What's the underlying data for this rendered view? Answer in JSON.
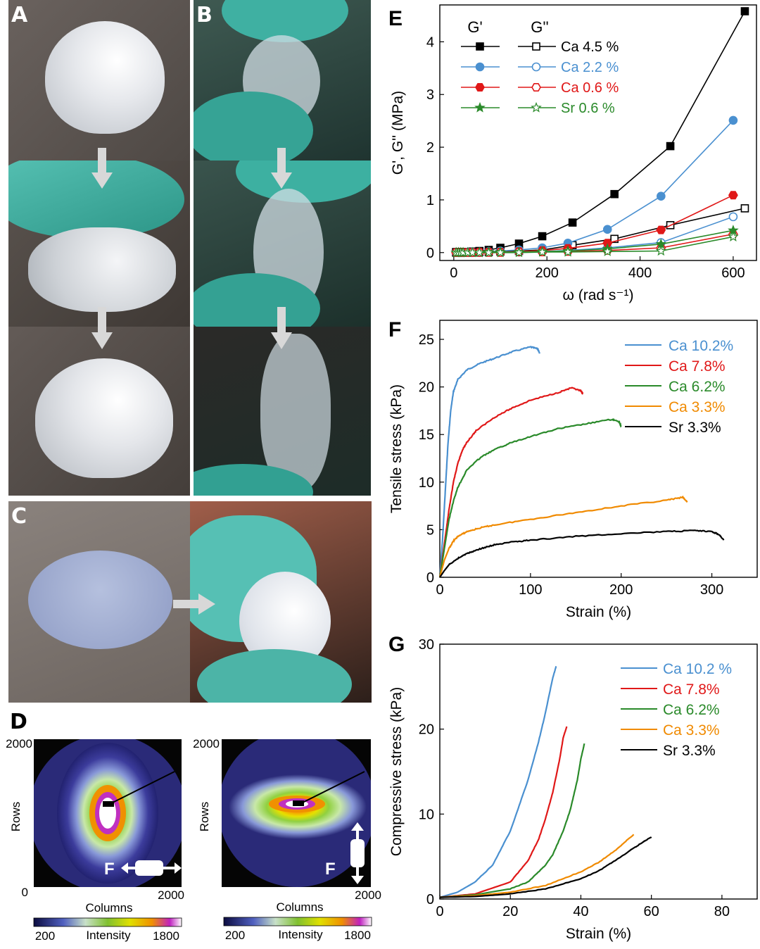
{
  "panels": {
    "a": "A",
    "b": "B",
    "c": "C",
    "d": "D",
    "e": "E",
    "f": "F",
    "g": "G"
  },
  "panel_d": {
    "left": {
      "rows_label": "Rows",
      "columns_label": "Columns",
      "y_max": "2000",
      "origin": "0",
      "x_max": "2000",
      "force_label": "F",
      "force_direction": "horizontal",
      "cbar_min": "200",
      "cbar_label": "Intensity",
      "cbar_max": "1800"
    },
    "right": {
      "rows_label": "Rows",
      "columns_label": "Columns",
      "y_max": "2000",
      "x_max": "2000",
      "force_label": "F",
      "force_direction": "vertical",
      "cbar_min": "200",
      "cbar_label": "Intensity",
      "cbar_max": "1800"
    }
  },
  "chart_data": [
    {
      "panel": "E",
      "type": "line",
      "xlabel": "ω (rad s⁻¹)",
      "ylabel": "G', G'' (MPa)",
      "xlim": [
        -30,
        650
      ],
      "ylim": [
        -0.15,
        4.7
      ],
      "xticks": [
        0,
        200,
        400,
        600
      ],
      "yticks": [
        0,
        1,
        2,
        3,
        4
      ],
      "legend_headers": [
        "G'",
        "G''"
      ],
      "series": [
        {
          "name": "Ca 4.5 %",
          "color": "#000000",
          "marker": "square",
          "x": [
            5,
            10,
            15,
            20,
            30,
            40,
            55,
            75,
            100,
            140,
            190,
            255,
            345,
            465,
            625
          ],
          "gp": [
            0.01,
            0.01,
            0.01,
            0.01,
            0.01,
            0.02,
            0.03,
            0.05,
            0.09,
            0.17,
            0.31,
            0.57,
            1.11,
            2.02,
            4.58
          ],
          "gpp": [
            0.0,
            0.0,
            0.0,
            0.0,
            0.0,
            0.01,
            0.01,
            0.01,
            0.02,
            0.03,
            0.05,
            0.14,
            0.26,
            0.52,
            0.84
          ]
        },
        {
          "name": "Ca 2.2 %",
          "color": "#4a90d0",
          "marker": "circle",
          "x": [
            5,
            10,
            15,
            20,
            30,
            40,
            55,
            75,
            100,
            140,
            190,
            245,
            330,
            445,
            600
          ],
          "gp": [
            0.0,
            0.0,
            0.0,
            0.0,
            0.01,
            0.01,
            0.01,
            0.02,
            0.03,
            0.05,
            0.09,
            0.18,
            0.44,
            1.07,
            2.51
          ],
          "gpp": [
            0.0,
            0.0,
            0.0,
            0.0,
            0.0,
            0.0,
            0.0,
            0.01,
            0.01,
            0.01,
            0.02,
            0.04,
            0.09,
            0.19,
            0.68
          ]
        },
        {
          "name": "Ca 0.6 %",
          "color": "#e01818",
          "marker": "hexagon",
          "x": [
            5,
            10,
            15,
            20,
            30,
            40,
            55,
            75,
            100,
            140,
            190,
            245,
            330,
            445,
            600
          ],
          "gp": [
            0.0,
            0.0,
            0.0,
            0.0,
            0.0,
            0.0,
            0.01,
            0.01,
            0.01,
            0.02,
            0.04,
            0.08,
            0.18,
            0.43,
            1.09
          ],
          "gpp": [
            0.0,
            0.0,
            0.0,
            0.0,
            0.0,
            0.0,
            0.0,
            0.0,
            0.0,
            0.01,
            0.01,
            0.02,
            0.04,
            0.09,
            0.35
          ]
        },
        {
          "name": "Sr 0.6 %",
          "color": "#2a8a2a",
          "marker": "star",
          "x": [
            5,
            10,
            15,
            20,
            30,
            40,
            55,
            75,
            100,
            140,
            190,
            245,
            330,
            445,
            600
          ],
          "gp": [
            0.0,
            0.0,
            0.0,
            0.0,
            0.0,
            0.0,
            0.0,
            0.01,
            0.01,
            0.01,
            0.02,
            0.03,
            0.07,
            0.16,
            0.42
          ],
          "gpp": [
            0.0,
            0.0,
            0.0,
            0.0,
            0.0,
            0.0,
            0.0,
            0.0,
            0.0,
            0.0,
            0.01,
            0.01,
            0.02,
            0.03,
            0.3
          ]
        }
      ]
    },
    {
      "panel": "F",
      "type": "line",
      "xlabel": "Strain (%)",
      "ylabel": "Tensile stress (kPa)",
      "xlim": [
        0,
        350
      ],
      "ylim": [
        0,
        27
      ],
      "xticks": [
        0,
        100,
        200,
        300
      ],
      "yticks": [
        0,
        5,
        10,
        15,
        20,
        25
      ],
      "series": [
        {
          "name": "Ca 10.2%",
          "color": "#4a90d0",
          "x": [
            0,
            3,
            6,
            9,
            12,
            15,
            20,
            30,
            45,
            60,
            80,
            100,
            108,
            110
          ],
          "y": [
            0,
            4,
            9,
            14,
            17.5,
            19.5,
            20.8,
            21.8,
            22.5,
            23.0,
            23.7,
            24.2,
            24.0,
            23.5
          ]
        },
        {
          "name": "Ca 7.8%",
          "color": "#e01818",
          "x": [
            0,
            5,
            10,
            15,
            20,
            25,
            30,
            40,
            60,
            80,
            100,
            130,
            145,
            155,
            158
          ],
          "y": [
            0,
            3.5,
            7,
            10,
            12,
            13.4,
            14.2,
            15.4,
            16.8,
            17.8,
            18.6,
            19.4,
            19.9,
            19.6,
            19.3
          ]
        },
        {
          "name": "Ca 6.2%",
          "color": "#2a8a2a",
          "x": [
            0,
            5,
            10,
            15,
            20,
            30,
            45,
            60,
            80,
            100,
            130,
            160,
            190,
            198,
            200
          ],
          "y": [
            0,
            3,
            6,
            8,
            9.5,
            11.3,
            12.6,
            13.4,
            14.2,
            14.8,
            15.6,
            16.1,
            16.6,
            16.3,
            15.8
          ]
        },
        {
          "name": "Ca 3.3%",
          "color": "#f08a00",
          "x": [
            0,
            5,
            10,
            15,
            20,
            30,
            45,
            60,
            100,
            150,
            200,
            250,
            268,
            273
          ],
          "y": [
            0,
            1.8,
            3.0,
            3.8,
            4.3,
            4.8,
            5.2,
            5.5,
            6.1,
            6.8,
            7.5,
            8.1,
            8.4,
            7.9
          ]
        },
        {
          "name": "Sr 3.3%",
          "color": "#000000",
          "x": [
            0,
            5,
            10,
            20,
            30,
            45,
            60,
            80,
            100,
            150,
            200,
            250,
            280,
            300,
            308,
            313
          ],
          "y": [
            0,
            0.7,
            1.3,
            2.0,
            2.5,
            3.0,
            3.4,
            3.7,
            3.9,
            4.3,
            4.6,
            4.8,
            4.9,
            4.8,
            4.5,
            3.9
          ]
        }
      ]
    },
    {
      "panel": "G",
      "type": "line",
      "xlabel": "Strain (%)",
      "ylabel": "Compressive stress (kPa)",
      "xlim": [
        0,
        90
      ],
      "ylim": [
        0,
        30
      ],
      "xticks": [
        0,
        20,
        40,
        60,
        80
      ],
      "yticks": [
        0,
        10,
        20,
        30
      ],
      "series": [
        {
          "name": "Ca 10.2 %",
          "color": "#4a90d0",
          "x": [
            0,
            5,
            10,
            15,
            20,
            25,
            28,
            30,
            32,
            33
          ],
          "y": [
            0.2,
            0.8,
            2.0,
            4.0,
            8.0,
            14.0,
            18.5,
            22.0,
            26.0,
            27.4
          ]
        },
        {
          "name": "Ca 7.8%",
          "color": "#e01818",
          "x": [
            0,
            10,
            20,
            25,
            28,
            30,
            32,
            34,
            35,
            36
          ],
          "y": [
            0.2,
            0.6,
            2.0,
            4.5,
            7.0,
            9.5,
            12.5,
            16.5,
            19.0,
            20.3
          ]
        },
        {
          "name": "Ca 6.2%",
          "color": "#2a8a2a",
          "x": [
            0,
            10,
            20,
            25,
            30,
            32,
            35,
            37,
            39,
            40,
            41
          ],
          "y": [
            0.2,
            0.5,
            1.2,
            2.0,
            4.0,
            5.2,
            8.0,
            10.5,
            14.0,
            16.5,
            18.3
          ]
        },
        {
          "name": "Ca 3.3%",
          "color": "#f08a00",
          "x": [
            0,
            10,
            20,
            30,
            40,
            45,
            50,
            53,
            55
          ],
          "y": [
            0.2,
            0.4,
            0.8,
            1.6,
            3.2,
            4.3,
            5.8,
            6.9,
            7.6
          ]
        },
        {
          "name": "Sr 3.3%",
          "color": "#000000",
          "x": [
            0,
            10,
            20,
            30,
            40,
            45,
            50,
            55,
            58,
            60
          ],
          "y": [
            0.2,
            0.3,
            0.6,
            1.2,
            2.4,
            3.3,
            4.6,
            6.0,
            6.8,
            7.3
          ]
        }
      ]
    }
  ]
}
